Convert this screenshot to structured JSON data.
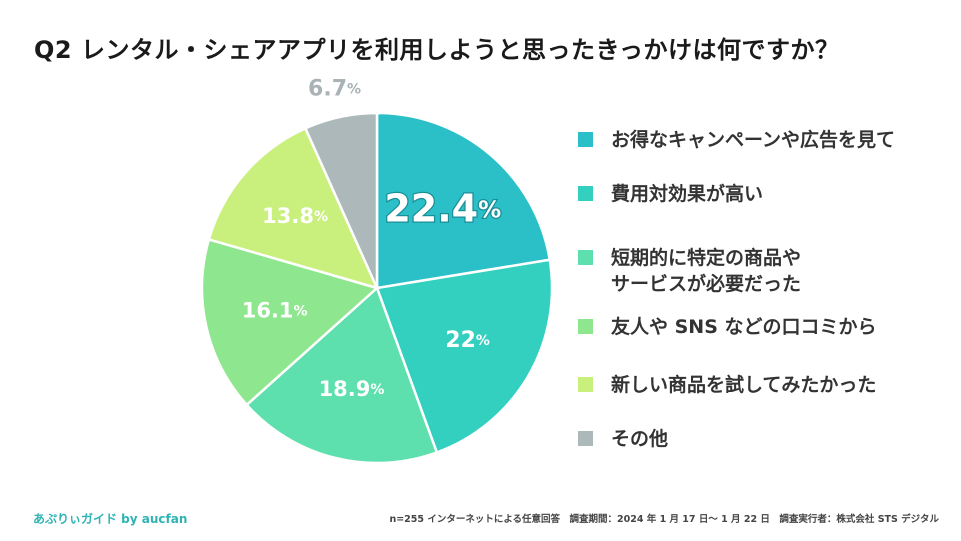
{
  "chart_data": {
    "type": "pie",
    "title": "Q2 レンタル・シェアアプリを利用しようと思ったきっかけは何ですか？",
    "unit": "%",
    "slices": [
      {
        "label": "お得なキャンペーンや広告を見て",
        "value": 22.4,
        "display": "22.4",
        "color": "#2bbfc8"
      },
      {
        "label": "費用対効果が高い",
        "value": 22,
        "display": "22",
        "color": "#33d0c0"
      },
      {
        "label": "短期的に特定の商品や\nサービスが必要だった",
        "value": 18.9,
        "display": "18.9",
        "color": "#5ddfae"
      },
      {
        "label": "友人や SNS などの口コミから",
        "value": 16.1,
        "display": "16.1",
        "color": "#8ee68f"
      },
      {
        "label": "新しい商品を試してみたかった",
        "value": 13.8,
        "display": "13.8",
        "color": "#c9ef7c"
      },
      {
        "label": "その他",
        "value": 6.7,
        "display": "6.7",
        "color": "#adb8ba"
      }
    ]
  },
  "footer": {
    "brand": "あぷりぃガイド by aucfan",
    "note": "n=255 インターネットによる任意回答　調査期間：2024 年 1 月 17 日～ 1 月 22 日　調査実行者：株式会社 STS デジタル"
  }
}
